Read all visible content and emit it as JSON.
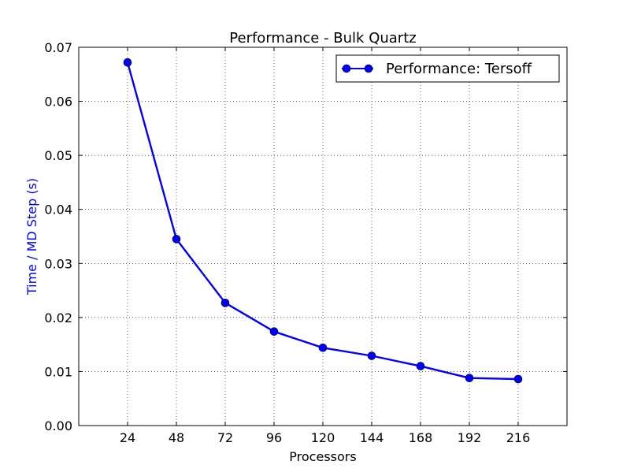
{
  "chart_data": {
    "type": "line",
    "title": "Performance - Bulk Quartz",
    "xlabel": "Processors",
    "ylabel": "Time / MD Step (s)",
    "xlim": [
      0,
      240
    ],
    "ylim": [
      0,
      0.07
    ],
    "x_ticks": [
      24,
      48,
      72,
      96,
      120,
      144,
      168,
      192,
      216
    ],
    "x_tick_labels": [
      "24",
      "48",
      "72",
      "96",
      "120",
      "144",
      "168",
      "192",
      "216"
    ],
    "y_ticks": [
      0,
      0.01,
      0.02,
      0.03,
      0.04,
      0.05,
      0.06,
      0.07
    ],
    "y_tick_labels": [
      "0.00",
      "0.01",
      "0.02",
      "0.03",
      "0.04",
      "0.05",
      "0.06",
      "0.07"
    ],
    "grid": true,
    "legend_position": "top-right",
    "series": [
      {
        "name": "Performance: Tersoff",
        "color": "#0000ff",
        "x": [
          24,
          48,
          72,
          96,
          120,
          144,
          168,
          192,
          216
        ],
        "y": [
          0.0672,
          0.0345,
          0.0227,
          0.0174,
          0.0144,
          0.0129,
          0.011,
          0.0088,
          0.0086
        ]
      }
    ]
  }
}
